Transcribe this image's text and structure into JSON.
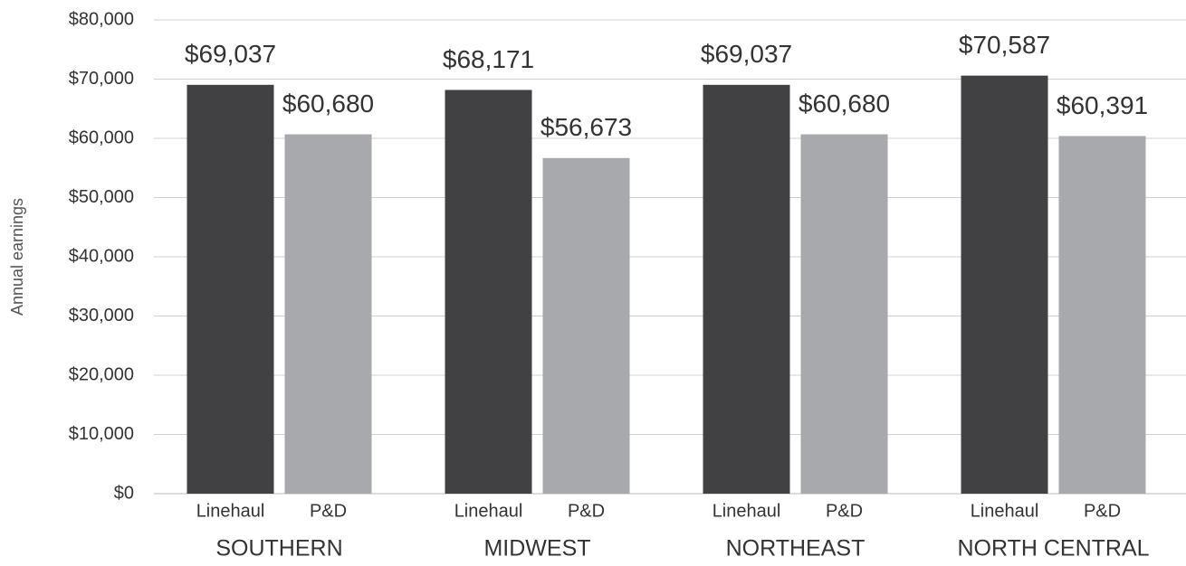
{
  "chart_data": {
    "type": "bar",
    "y_label": "Annual earnings",
    "categories": [
      "SOUTHERN",
      "MIDWEST",
      "NORTHEAST",
      "NORTH CENTRAL"
    ],
    "series": [
      {
        "name": "Linehaul",
        "color": "#414042",
        "values": [
          69037,
          68171,
          69037,
          70587
        ],
        "value_labels": [
          "$69,037",
          "$68,171",
          "$69,037",
          "$70,587"
        ]
      },
      {
        "name": "P&D",
        "color": "#a7a9ac",
        "values": [
          60680,
          56673,
          60680,
          60391
        ],
        "value_labels": [
          "$60,680",
          "$56,673",
          "$60,680",
          "$60,391"
        ]
      }
    ],
    "ylim": [
      0,
      80000
    ],
    "yticks": [
      {
        "value": 0,
        "label": "$0"
      },
      {
        "value": 10000,
        "label": "$10,000"
      },
      {
        "value": 20000,
        "label": "$20,000"
      },
      {
        "value": 30000,
        "label": "$30,000"
      },
      {
        "value": 40000,
        "label": "$40,000"
      },
      {
        "value": 50000,
        "label": "$50,000"
      },
      {
        "value": 60000,
        "label": "$60,000"
      },
      {
        "value": 70000,
        "label": "$70,000"
      },
      {
        "value": 80000,
        "label": "$80,000"
      }
    ],
    "grid": true
  }
}
